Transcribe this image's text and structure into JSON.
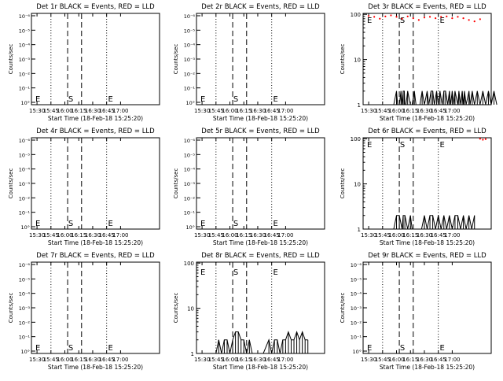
{
  "ylabel": "Counts/sec",
  "xlabel": "Start Time (18-Feb-18 15:25:20)",
  "x_ticks": [
    "15:30",
    "15:45",
    "16:00",
    "16:15",
    "16:30",
    "16:45",
    "17:00"
  ],
  "log_ticks": [
    "10°",
    "10⁻¹",
    "10⁻²",
    "10⁻³",
    "10⁻⁴",
    "10⁻⁵",
    "10⁻⁶"
  ],
  "lin_ticks": [
    "1",
    "10",
    "100"
  ],
  "colors": {
    "events": "#000000",
    "lld": "#ff0000"
  },
  "chart_data": [
    {
      "title": "Det 1r BLACK = Events, RED = LLD",
      "type": "line",
      "scale": "log-empty",
      "marks": [
        "E",
        "S",
        "E"
      ],
      "events": [],
      "lld": []
    },
    {
      "title": "Det 2r BLACK = Events, RED = LLD",
      "type": "line",
      "scale": "log-empty",
      "marks": [
        "E",
        "S",
        "E"
      ],
      "events": [],
      "lld": []
    },
    {
      "title": "Det 3r BLACK = Events, RED = LLD",
      "type": "line",
      "scale": "log",
      "ylim": [
        1,
        100
      ],
      "marks": [
        "E",
        "S",
        "E"
      ],
      "events": [
        [
          15.95,
          1
        ],
        [
          16.0,
          2
        ],
        [
          16.02,
          1
        ],
        [
          16.05,
          1
        ],
        [
          16.08,
          2
        ],
        [
          16.1,
          1
        ],
        [
          16.12,
          2
        ],
        [
          16.14,
          2
        ],
        [
          16.15,
          1
        ],
        [
          16.17,
          1
        ],
        [
          16.2,
          2
        ],
        [
          16.25,
          1
        ],
        [
          16.28,
          1
        ],
        [
          16.32,
          2
        ],
        [
          16.35,
          1
        ],
        [
          16.42,
          1
        ],
        [
          16.46,
          2
        ],
        [
          16.5,
          1
        ],
        [
          16.55,
          2
        ],
        [
          16.58,
          1
        ],
        [
          16.62,
          2
        ],
        [
          16.65,
          2
        ],
        [
          16.68,
          1
        ],
        [
          16.72,
          2
        ],
        [
          16.75,
          1
        ],
        [
          16.78,
          2
        ],
        [
          16.82,
          1
        ],
        [
          16.85,
          2
        ],
        [
          16.88,
          2
        ],
        [
          16.92,
          1
        ],
        [
          16.95,
          2
        ],
        [
          16.97,
          1
        ],
        [
          17.0,
          2
        ],
        [
          17.03,
          1
        ],
        [
          17.05,
          2
        ],
        [
          17.1,
          1
        ],
        [
          17.12,
          2
        ],
        [
          17.15,
          1
        ],
        [
          17.18,
          2
        ],
        [
          17.2,
          1
        ],
        [
          17.22,
          2
        ],
        [
          17.25,
          1
        ],
        [
          17.3,
          2
        ],
        [
          17.32,
          1
        ],
        [
          17.36,
          2
        ],
        [
          17.4,
          1
        ],
        [
          17.45,
          2
        ],
        [
          17.5,
          1
        ],
        [
          17.55,
          2
        ],
        [
          17.6,
          1
        ],
        [
          17.65,
          2
        ],
        [
          17.7,
          1
        ],
        [
          17.75,
          2
        ],
        [
          17.8,
          1
        ]
      ],
      "lld": [
        [
          15.5,
          92
        ],
        [
          15.6,
          88
        ],
        [
          15.7,
          80
        ],
        [
          15.8,
          90
        ],
        [
          15.9,
          95
        ],
        [
          16.0,
          88
        ],
        [
          16.1,
          80
        ],
        [
          16.2,
          90
        ],
        [
          16.3,
          82
        ],
        [
          16.4,
          75
        ],
        [
          16.5,
          85
        ],
        [
          16.6,
          88
        ],
        [
          16.7,
          82
        ],
        [
          16.8,
          88
        ],
        [
          16.9,
          90
        ],
        [
          17.0,
          82
        ],
        [
          17.1,
          88
        ],
        [
          17.2,
          82
        ],
        [
          17.3,
          75
        ],
        [
          17.4,
          70
        ],
        [
          17.5,
          78
        ]
      ]
    },
    {
      "title": "Det 4r BLACK = Events, RED = LLD",
      "type": "line",
      "scale": "log-empty",
      "marks": [
        "E",
        "S",
        "E"
      ],
      "events": [],
      "lld": []
    },
    {
      "title": "Det 5r BLACK = Events, RED = LLD",
      "type": "line",
      "scale": "log-empty",
      "marks": [
        "E",
        "S",
        "E"
      ],
      "events": [],
      "lld": []
    },
    {
      "title": "Det 6r BLACK = Events, RED = LLD",
      "type": "line",
      "scale": "log",
      "ylim": [
        1,
        100
      ],
      "marks": [
        "E",
        "S",
        "E"
      ],
      "events": [
        [
          15.95,
          1
        ],
        [
          16.0,
          2
        ],
        [
          16.05,
          2
        ],
        [
          16.1,
          1
        ],
        [
          16.12,
          2
        ],
        [
          16.15,
          2
        ],
        [
          16.2,
          1
        ],
        [
          16.25,
          2
        ],
        [
          16.28,
          1
        ],
        [
          16.35,
          1
        ],
        [
          16.45,
          1
        ],
        [
          16.5,
          2
        ],
        [
          16.55,
          1
        ],
        [
          16.6,
          2
        ],
        [
          16.65,
          2
        ],
        [
          16.7,
          1
        ],
        [
          16.75,
          2
        ],
        [
          16.8,
          1
        ],
        [
          16.85,
          2
        ],
        [
          16.9,
          1
        ],
        [
          16.95,
          2
        ],
        [
          17.0,
          1
        ],
        [
          17.05,
          2
        ],
        [
          17.1,
          2
        ],
        [
          17.15,
          1
        ],
        [
          17.2,
          2
        ],
        [
          17.25,
          1
        ],
        [
          17.3,
          2
        ],
        [
          17.35,
          1
        ],
        [
          17.4,
          2
        ]
      ],
      "lld": [
        [
          17.5,
          100
        ],
        [
          17.55,
          95
        ],
        [
          17.6,
          98
        ]
      ]
    },
    {
      "title": "Det 7r BLACK = Events, RED = LLD",
      "type": "line",
      "scale": "log-empty",
      "marks": [
        "E",
        "S",
        "E"
      ],
      "events": [],
      "lld": []
    },
    {
      "title": "Det 8r BLACK = Events, RED = LLD",
      "type": "line",
      "scale": "log",
      "ylim": [
        1,
        100
      ],
      "marks": [
        "E",
        "S",
        "E"
      ],
      "events": [
        [
          15.75,
          1
        ],
        [
          15.8,
          2
        ],
        [
          15.85,
          1
        ],
        [
          15.9,
          2
        ],
        [
          15.95,
          2
        ],
        [
          16.0,
          1
        ],
        [
          16.05,
          2
        ],
        [
          16.1,
          3
        ],
        [
          16.15,
          3
        ],
        [
          16.2,
          2
        ],
        [
          16.25,
          2
        ],
        [
          16.3,
          1
        ],
        [
          16.35,
          2
        ],
        [
          16.4,
          1
        ],
        [
          16.45,
          1
        ],
        [
          16.5,
          1
        ],
        [
          16.55,
          1
        ],
        [
          16.6,
          1
        ],
        [
          16.7,
          2
        ],
        [
          16.75,
          1
        ],
        [
          16.8,
          2
        ],
        [
          16.85,
          2
        ],
        [
          16.9,
          1
        ],
        [
          16.95,
          2
        ],
        [
          17.0,
          2
        ],
        [
          17.05,
          3
        ],
        [
          17.1,
          2
        ],
        [
          17.15,
          2
        ],
        [
          17.2,
          3
        ],
        [
          17.25,
          2
        ],
        [
          17.3,
          3
        ],
        [
          17.35,
          2
        ],
        [
          17.4,
          2
        ]
      ],
      "lld": []
    },
    {
      "title": "Det 9r BLACK = Events, RED = LLD",
      "type": "line",
      "scale": "log-empty",
      "marks": [
        "E",
        "S",
        "E"
      ],
      "events": [],
      "lld": []
    }
  ]
}
